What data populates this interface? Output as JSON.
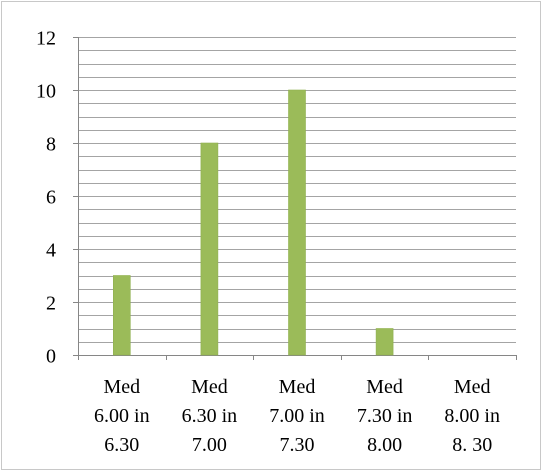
{
  "chart_data": {
    "type": "bar",
    "title": "",
    "xlabel": "",
    "ylabel": "",
    "categories": [
      [
        "Med",
        "6.00 in",
        "6.30"
      ],
      [
        "Med",
        "6.30 in",
        "7.00"
      ],
      [
        "Med",
        "7.00 in",
        "7.30"
      ],
      [
        "Med",
        "7.30 in",
        "8.00"
      ],
      [
        "Med",
        "8.00 in",
        "8. 30"
      ]
    ],
    "values": [
      3,
      8,
      10,
      1,
      0
    ],
    "ylim": [
      0,
      12
    ],
    "y_ticks": [
      "0",
      "2",
      "4",
      "6",
      "8",
      "10",
      "12"
    ],
    "minor_grid_step": 0.5,
    "grid": true,
    "legend": "none",
    "bar_color": "#9bbb59",
    "bar_edge_color": "#8fb04f",
    "grid_color": "#868686",
    "axis_color": "#868686"
  }
}
